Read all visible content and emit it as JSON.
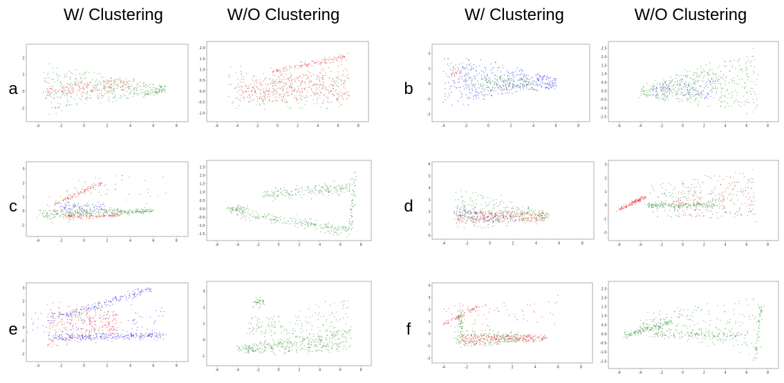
{
  "column_titles": [
    "W/ Clustering",
    "W/O Clustering",
    "W/ Clustering",
    "W/O Clustering"
  ],
  "row_labels": [
    "a",
    "b",
    "c",
    "d",
    "e",
    "f"
  ],
  "colors": {
    "red": "#e02020",
    "green": "#2e8b2e",
    "blue": "#2020e0"
  },
  "chart_data": [
    {
      "id": "a-w",
      "label": "a",
      "column": "W/ Clustering",
      "type": "scatter",
      "xticks": [
        "-4",
        "-2",
        "0",
        "2",
        "4",
        "6",
        "8"
      ],
      "yticks": [
        "-1",
        "0",
        "1",
        "2"
      ],
      "xlim": [
        -5,
        9
      ],
      "ylim": [
        -1.8,
        2.8
      ],
      "series": [
        {
          "color": "green",
          "shape": "wedge",
          "x0": -3.6,
          "x1": 7,
          "cy0": 0.2,
          "cy1": 0.1,
          "w0": 1.6,
          "w1": 0.25,
          "n": 420
        },
        {
          "color": "red",
          "shape": "wedge",
          "x0": -3.2,
          "x1": 4.5,
          "cy0": 0.0,
          "cy1": 0.5,
          "w0": 0.4,
          "w1": 0.4,
          "n": 150
        }
      ]
    },
    {
      "id": "a-wo",
      "label": "a",
      "column": "W/O Clustering",
      "type": "scatter",
      "xticks": [
        "-6",
        "-4",
        "-2",
        "0",
        "2",
        "4",
        "6",
        "8"
      ],
      "yticks": [
        "-1.0",
        "-0.5",
        "0.0",
        "0.5",
        "1.0",
        "1.5",
        "2.0"
      ],
      "xlim": [
        -7,
        9
      ],
      "ylim": [
        -1.4,
        2.3
      ],
      "series": [
        {
          "color": "red",
          "shape": "wedge",
          "x0": -4,
          "x1": 7,
          "cy0": 0.0,
          "cy1": 0.3,
          "w0": 0.5,
          "w1": 1.0,
          "n": 380
        },
        {
          "color": "red",
          "shape": "line",
          "x0": -0.5,
          "x1": 7,
          "cy0": 0.9,
          "cy1": 1.6,
          "w0": 0.15,
          "w1": 0.15,
          "n": 120
        },
        {
          "color": "green",
          "shape": "wedge",
          "x0": -5,
          "x1": 7,
          "cy0": 0.2,
          "cy1": 0.0,
          "w0": 1.3,
          "w1": 0.8,
          "n": 200
        }
      ]
    },
    {
      "id": "b-w",
      "label": "b",
      "column": "W/ Clustering",
      "type": "scatter",
      "xticks": [
        "-4",
        "-2",
        "0",
        "2",
        "4",
        "6",
        "8"
      ],
      "yticks": [
        "-2",
        "-1",
        "0",
        "1",
        "2"
      ],
      "xlim": [
        -5,
        9
      ],
      "ylim": [
        -2.5,
        2.6
      ],
      "series": [
        {
          "color": "blue",
          "shape": "wedge",
          "x0": -4,
          "x1": 6,
          "cy0": 0.2,
          "cy1": 0.1,
          "w0": 1.9,
          "w1": 0.4,
          "n": 450
        },
        {
          "color": "green",
          "shape": "wedge",
          "x0": -2,
          "x1": 4,
          "cy0": 0.1,
          "cy1": 0.0,
          "w0": 0.6,
          "w1": 0.4,
          "n": 160
        },
        {
          "color": "red",
          "shape": "blob",
          "x0": -3.2,
          "x1": -2.4,
          "cy0": 0.8,
          "cy1": 0.8,
          "w0": 0.4,
          "w1": 0.4,
          "n": 20
        }
      ]
    },
    {
      "id": "b-wo",
      "label": "b",
      "column": "W/O Clustering",
      "type": "scatter",
      "xticks": [
        "-6",
        "-4",
        "-2",
        "0",
        "2",
        "4",
        "6",
        "8"
      ],
      "yticks": [
        "-1.5",
        "-1.0",
        "-0.5",
        "0.0",
        "0.5",
        "1.0",
        "1.5",
        "2.0",
        "2.5"
      ],
      "xlim": [
        -7,
        9
      ],
      "ylim": [
        -1.8,
        2.9
      ],
      "series": [
        {
          "color": "green",
          "shape": "wedge",
          "x0": -4,
          "x1": 7,
          "cy0": 0.0,
          "cy1": 0.5,
          "w0": 0.4,
          "w1": 2.0,
          "n": 480
        },
        {
          "color": "blue",
          "shape": "wedge",
          "x0": -3,
          "x1": 3,
          "cy0": -0.1,
          "cy1": 0.2,
          "w0": 0.4,
          "w1": 0.8,
          "n": 100
        }
      ]
    },
    {
      "id": "c-w",
      "label": "c",
      "column": "W/ Clustering",
      "type": "scatter",
      "xticks": [
        "-4",
        "-2",
        "0",
        "2",
        "4",
        "6",
        "8"
      ],
      "yticks": [
        "-1",
        "0",
        "1",
        "2",
        "3"
      ],
      "xlim": [
        -5,
        9
      ],
      "ylim": [
        -1.8,
        3.5
      ],
      "series": [
        {
          "color": "green",
          "shape": "line",
          "x0": -4,
          "x1": 6,
          "cy0": -0.2,
          "cy1": 0.0,
          "w0": 0.5,
          "w1": 0.15,
          "n": 340
        },
        {
          "color": "red",
          "shape": "line",
          "x0": -2.5,
          "x1": 1.5,
          "cy0": 0.5,
          "cy1": 2.0,
          "w0": 0.15,
          "w1": 0.15,
          "n": 90
        },
        {
          "color": "red",
          "shape": "line",
          "x0": -1.5,
          "x1": 3,
          "cy0": -0.4,
          "cy1": -0.3,
          "w0": 0.2,
          "w1": 0.15,
          "n": 110
        },
        {
          "color": "blue",
          "shape": "wedge",
          "x0": -2,
          "x1": 2,
          "cy0": 0.2,
          "cy1": 0.3,
          "w0": 0.5,
          "w1": 0.3,
          "n": 80
        },
        {
          "color": "green",
          "shape": "wedge",
          "x0": -3,
          "x1": 7,
          "cy0": 1.0,
          "cy1": 1.5,
          "w0": 1.5,
          "w1": 1.5,
          "n": 60
        }
      ]
    },
    {
      "id": "c-wo",
      "label": "c",
      "column": "W/O Clustering",
      "type": "scatter",
      "xticks": [
        "-6",
        "-4",
        "-2",
        "0",
        "2",
        "4",
        "6",
        "8"
      ],
      "yticks": [
        "-1.5",
        "-1.0",
        "-0.5",
        "0.0",
        "0.5",
        "1.0",
        "1.5",
        "2.0",
        "2.5"
      ],
      "xlim": [
        -7,
        9
      ],
      "ylim": [
        -1.9,
        2.9
      ],
      "series": [
        {
          "color": "green",
          "shape": "blob",
          "x0": -5,
          "x1": -3,
          "cy0": 0.0,
          "cy1": 0.0,
          "w0": 0.2,
          "w1": 0.2,
          "n": 60
        },
        {
          "color": "green",
          "shape": "line",
          "x0": -4,
          "x1": 7,
          "cy0": -0.3,
          "cy1": -1.3,
          "w0": 0.3,
          "w1": 0.3,
          "n": 220
        },
        {
          "color": "green",
          "shape": "line",
          "x0": -1.5,
          "x1": 7,
          "cy0": 0.8,
          "cy1": 1.3,
          "w0": 0.3,
          "w1": 0.4,
          "n": 200
        },
        {
          "color": "green",
          "shape": "line",
          "x0": 7,
          "x1": 7.4,
          "cy0": -1.3,
          "cy1": 2.4,
          "w0": 0.15,
          "w1": 0.15,
          "n": 60
        }
      ]
    },
    {
      "id": "d-w",
      "label": "d",
      "column": "W/ Clustering",
      "type": "scatter",
      "xticks": [
        "-4",
        "-2",
        "0",
        "2",
        "4",
        "6",
        "8"
      ],
      "yticks": [
        "0",
        "1",
        "2",
        "3",
        "4",
        "5",
        "6"
      ],
      "xlim": [
        -5,
        9
      ],
      "ylim": [
        -0.3,
        6.2
      ],
      "series": [
        {
          "color": "green",
          "shape": "wedge",
          "x0": -3,
          "x1": 5,
          "cy0": 2.2,
          "cy1": 1.6,
          "w0": 2.0,
          "w1": 0.4,
          "n": 300
        },
        {
          "color": "red",
          "shape": "wedge",
          "x0": -3,
          "x1": 5,
          "cy0": 1.6,
          "cy1": 1.6,
          "w0": 0.6,
          "w1": 0.5,
          "n": 260
        },
        {
          "color": "blue",
          "shape": "wedge",
          "x0": -3,
          "x1": 2,
          "cy0": 1.8,
          "cy1": 1.5,
          "w0": 0.6,
          "w1": 0.3,
          "n": 80
        }
      ]
    },
    {
      "id": "d-wo",
      "label": "d",
      "column": "W/O Clustering",
      "type": "scatter",
      "xticks": [
        "-6",
        "-4",
        "-2",
        "0",
        "2",
        "4",
        "6",
        "8"
      ],
      "yticks": [
        "-2",
        "-1",
        "0",
        "1",
        "2",
        "3"
      ],
      "xlim": [
        -7,
        9
      ],
      "ylim": [
        -2.6,
        3.3
      ],
      "series": [
        {
          "color": "red",
          "shape": "line",
          "x0": -6,
          "x1": -3.5,
          "cy0": -0.3,
          "cy1": 0.6,
          "w0": 0.15,
          "w1": 0.15,
          "n": 120
        },
        {
          "color": "green",
          "shape": "line",
          "x0": -3.5,
          "x1": 3,
          "cy0": 0.0,
          "cy1": 0.0,
          "w0": 0.2,
          "w1": 0.2,
          "n": 170
        },
        {
          "color": "green",
          "shape": "wedge",
          "x0": -3,
          "x1": 7,
          "cy0": 0.6,
          "cy1": 0.8,
          "w0": 1.2,
          "w1": 2.2,
          "n": 180
        },
        {
          "color": "red",
          "shape": "wedge",
          "x0": -1,
          "x1": 7,
          "cy0": 0.3,
          "cy1": 0.5,
          "w0": 1.2,
          "w1": 2.0,
          "n": 160
        },
        {
          "color": "blue",
          "shape": "line",
          "x0": -2.5,
          "x1": 2,
          "cy0": -0.8,
          "cy1": -0.8,
          "w0": 0.08,
          "w1": 0.08,
          "n": 12
        }
      ]
    },
    {
      "id": "e-w",
      "label": "e",
      "column": "W/ Clustering",
      "type": "scatter",
      "xticks": [
        "-4",
        "-2",
        "0",
        "2",
        "4",
        "6",
        "8"
      ],
      "yticks": [
        "-2",
        "-1",
        "0",
        "1",
        "2",
        "3"
      ],
      "xlim": [
        -5,
        9
      ],
      "ylim": [
        -2.6,
        3.4
      ],
      "series": [
        {
          "color": "blue",
          "shape": "line",
          "x0": -3,
          "x1": 6,
          "cy0": 0.6,
          "cy1": 3.0,
          "w0": 0.3,
          "w1": 0.3,
          "n": 180
        },
        {
          "color": "blue",
          "shape": "line",
          "x0": -3,
          "x1": 7,
          "cy0": -0.8,
          "cy1": -0.6,
          "w0": 0.3,
          "w1": 0.2,
          "n": 260
        },
        {
          "color": "blue",
          "shape": "wedge",
          "x0": -5,
          "x1": 7,
          "cy0": 0.3,
          "cy1": 0.3,
          "w0": 1.0,
          "w1": 1.6,
          "n": 120
        },
        {
          "color": "red",
          "shape": "wedge",
          "x0": -3.2,
          "x1": 3,
          "cy0": 0.0,
          "cy1": 0.4,
          "w0": 2.2,
          "w1": 0.8,
          "n": 260
        }
      ]
    },
    {
      "id": "e-wo",
      "label": "e",
      "column": "W/O Clustering",
      "type": "scatter",
      "xticks": [
        "-6",
        "-4",
        "-2",
        "0",
        "2",
        "4",
        "6",
        "8"
      ],
      "yticks": [
        "-1",
        "0",
        "1",
        "2",
        "3"
      ],
      "xlim": [
        -7,
        9
      ],
      "ylim": [
        -1.6,
        3.6
      ],
      "series": [
        {
          "color": "green",
          "shape": "wedge",
          "x0": -4,
          "x1": 7,
          "cy0": -0.6,
          "cy1": 0.0,
          "w0": 0.3,
          "w1": 0.8,
          "n": 380
        },
        {
          "color": "green",
          "shape": "wedge",
          "x0": -3,
          "x1": 7,
          "cy0": 0.8,
          "cy1": 1.0,
          "w0": 0.5,
          "w1": 1.8,
          "n": 180
        },
        {
          "color": "green",
          "shape": "blob",
          "x0": -2.5,
          "x1": -1.5,
          "cy0": 2.2,
          "cy1": 2.4,
          "w0": 0.3,
          "w1": 0.3,
          "n": 40
        }
      ]
    },
    {
      "id": "f-w",
      "label": "f",
      "column": "W/ Clustering",
      "type": "scatter",
      "xticks": [
        "-4",
        "-2",
        "0",
        "2",
        "4",
        "6",
        "8"
      ],
      "yticks": [
        "-2",
        "-1",
        "0",
        "1",
        "2",
        "3",
        "4"
      ],
      "xlim": [
        -5,
        9
      ],
      "ylim": [
        -2.4,
        4.2
      ],
      "series": [
        {
          "color": "red",
          "shape": "line",
          "x0": -4,
          "x1": -1,
          "cy0": 0.8,
          "cy1": 2.2,
          "w0": 0.15,
          "w1": 0.15,
          "n": 70
        },
        {
          "color": "red",
          "shape": "wedge",
          "x0": -2.5,
          "x1": 5,
          "cy0": -0.5,
          "cy1": -0.3,
          "w0": 0.5,
          "w1": 0.3,
          "n": 300
        },
        {
          "color": "green",
          "shape": "wedge",
          "x0": -3,
          "x1": 3,
          "cy0": -0.3,
          "cy1": -0.3,
          "w0": 1.0,
          "w1": 0.4,
          "n": 160
        },
        {
          "color": "green",
          "shape": "line",
          "x0": -2.7,
          "x1": -2.3,
          "cy0": 0.8,
          "cy1": 0.8,
          "w0": 1.4,
          "w1": 1.4,
          "n": 60
        },
        {
          "color": "red",
          "shape": "wedge",
          "x0": -4,
          "x1": 6,
          "cy0": 1.2,
          "cy1": 1.8,
          "w0": 1.0,
          "w1": 1.5,
          "n": 60
        }
      ]
    },
    {
      "id": "f-wo",
      "label": "f",
      "column": "W/O Clustering",
      "type": "scatter",
      "xticks": [
        "-6",
        "-4",
        "-2",
        "0",
        "2",
        "4",
        "6",
        "8"
      ],
      "yticks": [
        "-1.5",
        "-1.0",
        "-0.5",
        "0.0",
        "0.5",
        "1.0",
        "1.5",
        "2.0",
        "2.5"
      ],
      "xlim": [
        -7,
        9
      ],
      "ylim": [
        -1.9,
        2.9
      ],
      "series": [
        {
          "color": "green",
          "shape": "line",
          "x0": -5.5,
          "x1": -1,
          "cy0": -0.1,
          "cy1": 0.7,
          "w0": 0.2,
          "w1": 0.2,
          "n": 150
        },
        {
          "color": "green",
          "shape": "line",
          "x0": -3,
          "x1": 6,
          "cy0": 0.0,
          "cy1": -0.1,
          "w0": 0.25,
          "w1": 0.2,
          "n": 140
        },
        {
          "color": "green",
          "shape": "wedge",
          "x0": -4,
          "x1": 7,
          "cy0": 0.5,
          "cy1": 0.6,
          "w0": 0.6,
          "w1": 1.8,
          "n": 200
        },
        {
          "color": "green",
          "shape": "line",
          "x0": 6.8,
          "x1": 7.4,
          "cy0": -1.5,
          "cy1": 1.6,
          "w0": 0.15,
          "w1": 0.15,
          "n": 60
        }
      ]
    }
  ]
}
